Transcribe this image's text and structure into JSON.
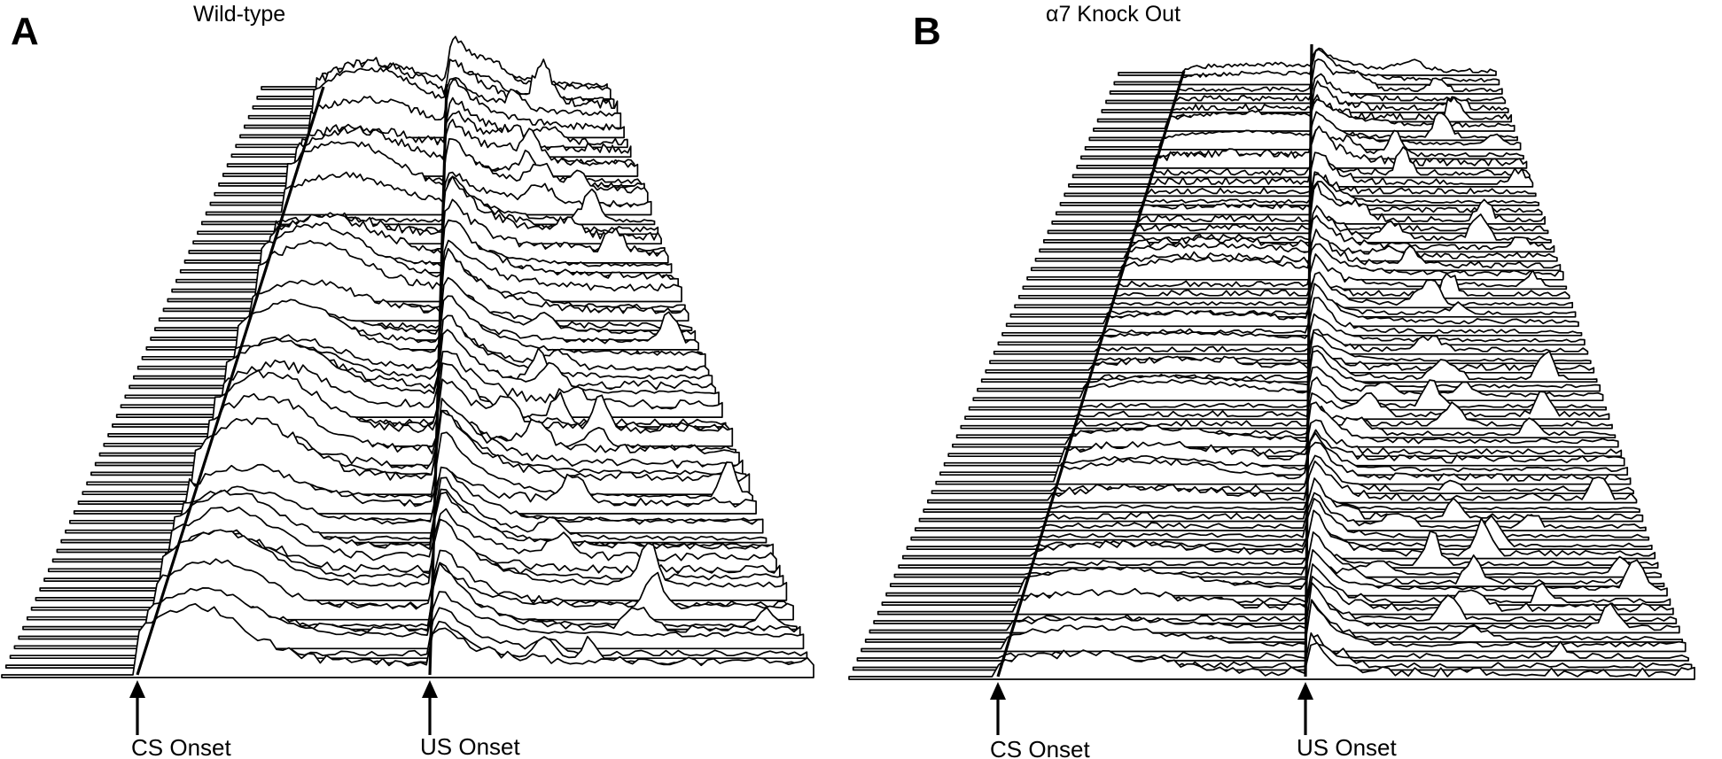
{
  "panels": [
    {
      "id": "A",
      "letter": "A",
      "title": "Wild-type",
      "cs_label": "CS Onset",
      "us_label": "US Onset"
    },
    {
      "id": "B",
      "letter": "B",
      "title": "α7 Knock Out",
      "cs_label": "CS Onset",
      "us_label": "US Onset"
    }
  ],
  "colors": {
    "ink": "#000000",
    "background": "#ffffff"
  }
}
